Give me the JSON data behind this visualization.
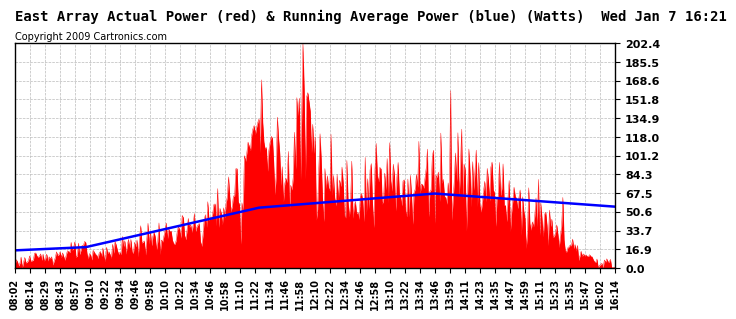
{
  "title": "East Array Actual Power (red) & Running Average Power (blue) (Watts)  Wed Jan 7 16:21",
  "copyright": "Copyright 2009 Cartronics.com",
  "yticks": [
    0.0,
    16.9,
    33.7,
    50.6,
    67.5,
    84.3,
    101.2,
    118.0,
    134.9,
    151.8,
    168.6,
    185.5,
    202.4
  ],
  "ymax": 202.4,
  "ymin": 0.0,
  "xtick_labels": [
    "08:02",
    "08:14",
    "08:29",
    "08:43",
    "08:57",
    "09:10",
    "09:22",
    "09:34",
    "09:46",
    "09:58",
    "10:10",
    "10:22",
    "10:34",
    "10:46",
    "10:58",
    "11:10",
    "11:22",
    "11:34",
    "11:46",
    "11:58",
    "12:10",
    "12:22",
    "12:34",
    "12:46",
    "12:58",
    "13:10",
    "13:22",
    "13:34",
    "13:46",
    "13:59",
    "14:11",
    "14:23",
    "14:35",
    "14:47",
    "14:59",
    "15:11",
    "15:23",
    "15:35",
    "15:47",
    "16:02",
    "16:14"
  ],
  "bg_color": "#ffffff",
  "grid_color": "#bbbbbb",
  "actual_color": "red",
  "avg_color": "blue",
  "title_fontsize": 10,
  "copyright_fontsize": 7,
  "tick_fontsize": 7,
  "ytick_fontsize": 8
}
